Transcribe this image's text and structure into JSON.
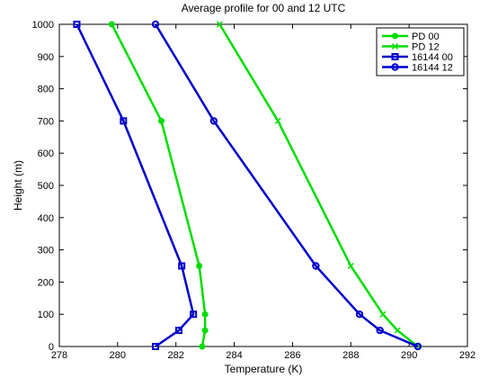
{
  "chart_data": {
    "type": "line",
    "title": "Average profile for 00 and 12 UTC",
    "xlabel": "Temperature (K)",
    "ylabel": "Height (m)",
    "xlim": [
      278,
      292
    ],
    "ylim": [
      0,
      1000
    ],
    "xticks": [
      278,
      280,
      282,
      284,
      286,
      288,
      290,
      292
    ],
    "yticks": [
      0,
      100,
      200,
      300,
      400,
      500,
      600,
      700,
      800,
      900,
      1000
    ],
    "grid": false,
    "legend_position": "top-right",
    "series": [
      {
        "name": "PD 00",
        "color": "#00dd00",
        "marker": "dot",
        "points": [
          {
            "x": 282.9,
            "y": 0
          },
          {
            "x": 283.0,
            "y": 50
          },
          {
            "x": 283.0,
            "y": 100
          },
          {
            "x": 282.8,
            "y": 250
          },
          {
            "x": 281.5,
            "y": 700
          },
          {
            "x": 279.8,
            "y": 1000
          }
        ]
      },
      {
        "name": "PD 12",
        "color": "#00dd00",
        "marker": "x",
        "points": [
          {
            "x": 290.3,
            "y": 0
          },
          {
            "x": 289.6,
            "y": 50
          },
          {
            "x": 289.1,
            "y": 100
          },
          {
            "x": 288.0,
            "y": 250
          },
          {
            "x": 285.5,
            "y": 700
          },
          {
            "x": 283.5,
            "y": 1000
          }
        ]
      },
      {
        "name": "16144 00",
        "color": "#0000cc",
        "marker": "square",
        "points": [
          {
            "x": 281.3,
            "y": 0
          },
          {
            "x": 282.1,
            "y": 50
          },
          {
            "x": 282.6,
            "y": 100
          },
          {
            "x": 282.2,
            "y": 250
          },
          {
            "x": 280.2,
            "y": 700
          },
          {
            "x": 278.6,
            "y": 1000
          }
        ]
      },
      {
        "name": "16144 12",
        "color": "#0000cc",
        "marker": "circle",
        "points": [
          {
            "x": 290.3,
            "y": 0
          },
          {
            "x": 289.0,
            "y": 50
          },
          {
            "x": 288.3,
            "y": 100
          },
          {
            "x": 286.8,
            "y": 250
          },
          {
            "x": 283.3,
            "y": 700
          },
          {
            "x": 281.3,
            "y": 1000
          }
        ]
      }
    ]
  }
}
